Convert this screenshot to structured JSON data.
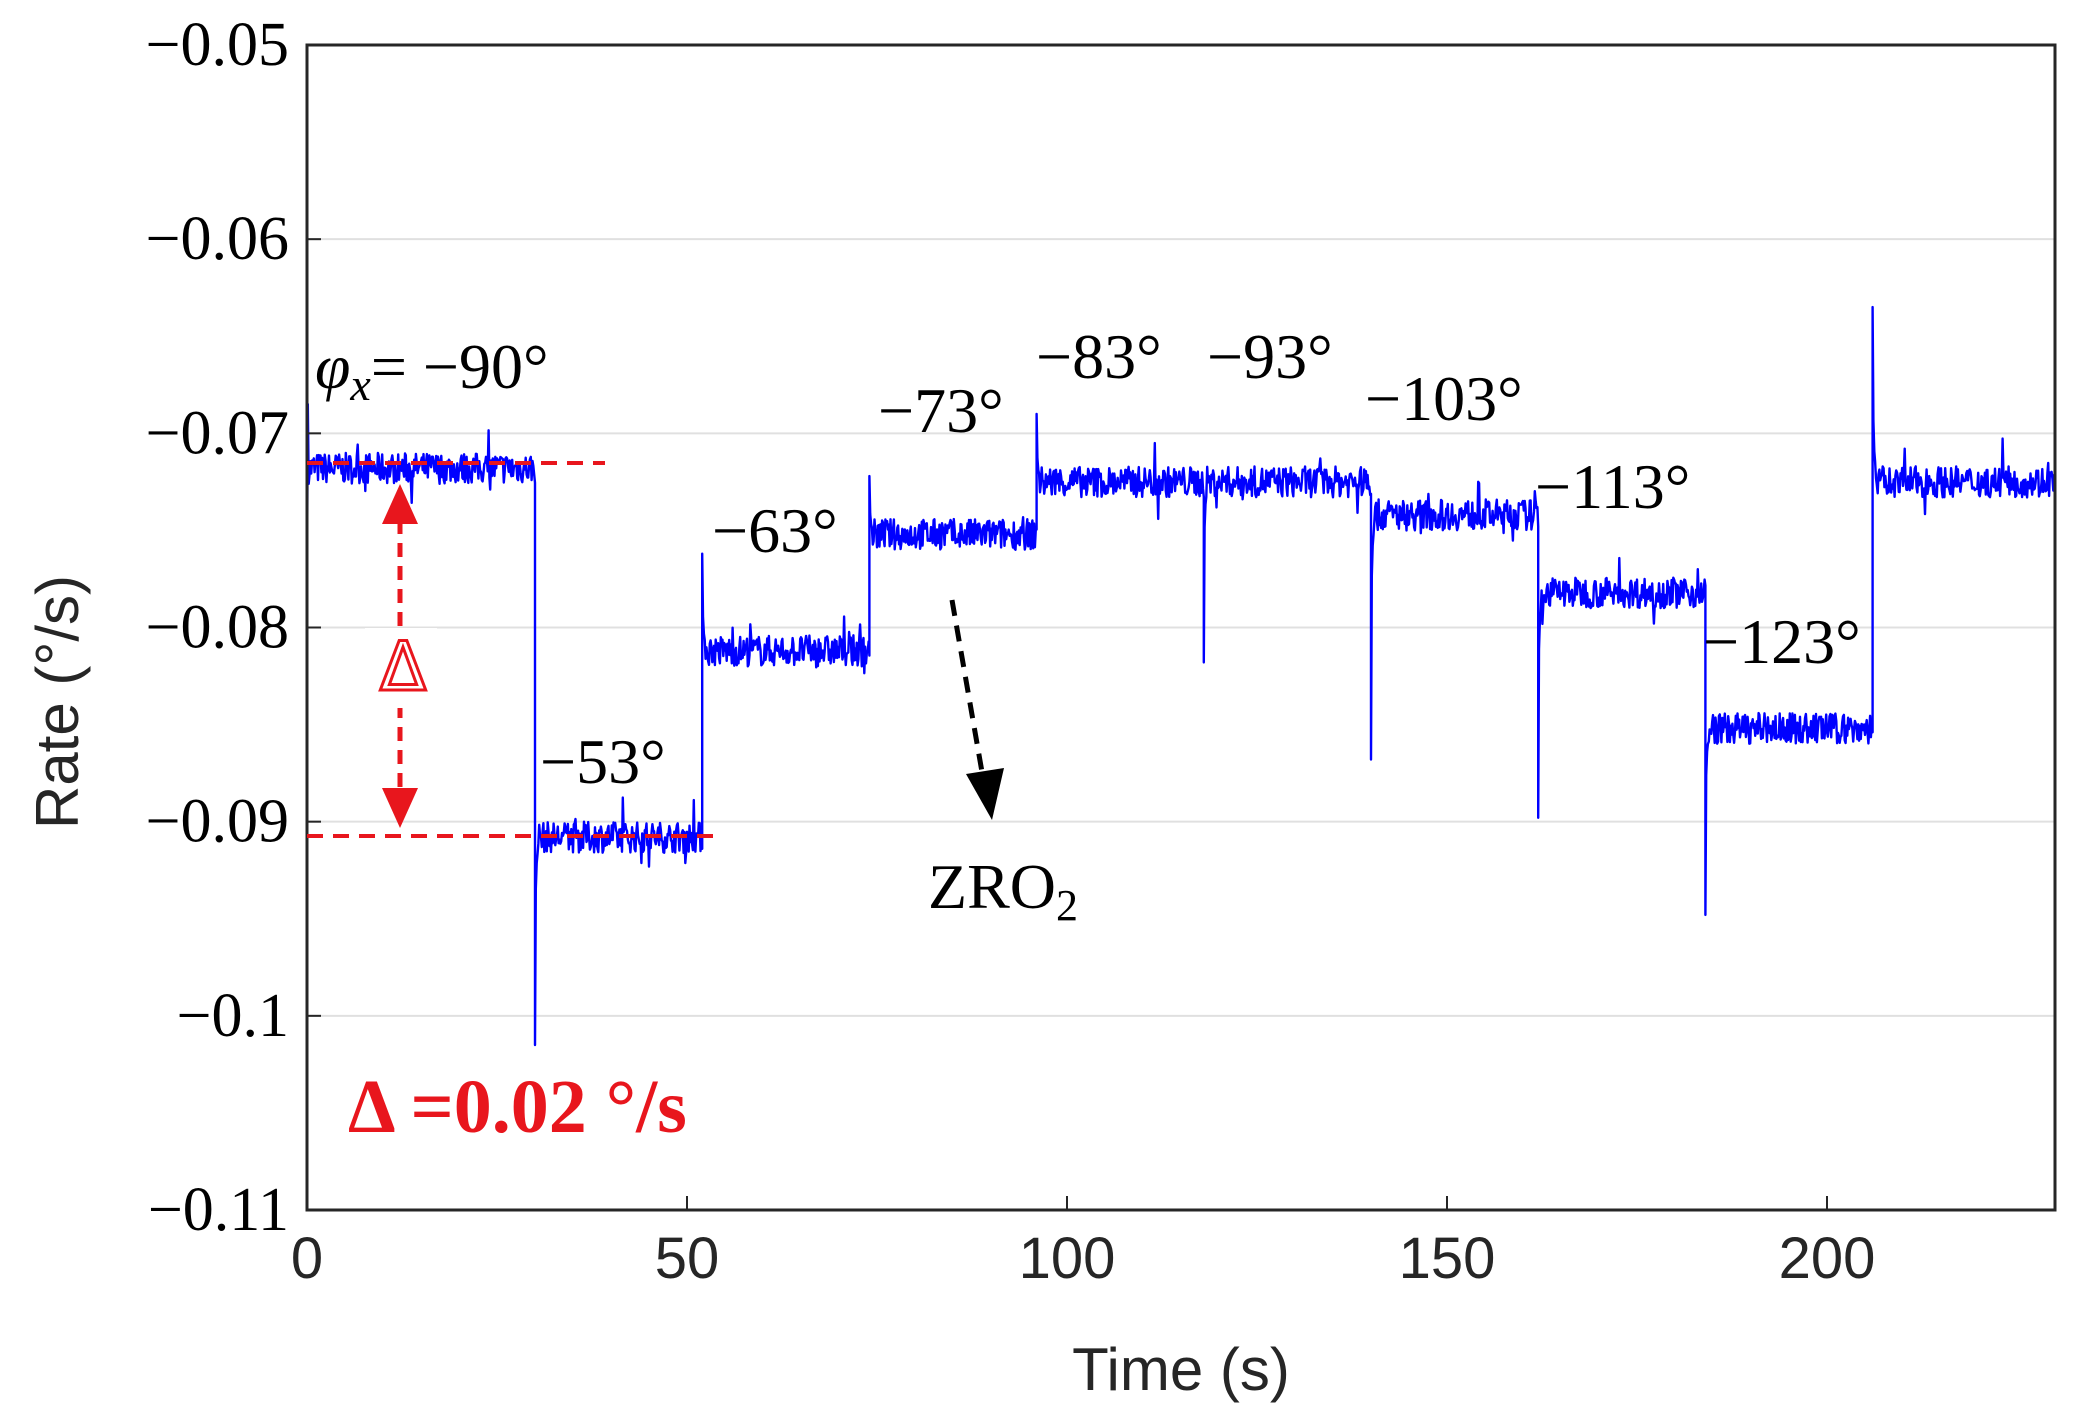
{
  "chart_data": {
    "type": "line",
    "title": "",
    "xlabel": "Time (s)",
    "ylabel": "Rate (°/s)",
    "xlim": [
      0,
      230
    ],
    "ylim": [
      -0.11,
      -0.05
    ],
    "x_ticks": [
      {
        "value": 0,
        "label": "0"
      },
      {
        "value": 50,
        "label": "50"
      },
      {
        "value": 100,
        "label": "100"
      },
      {
        "value": 150,
        "label": "150"
      },
      {
        "value": 200,
        "label": "200"
      }
    ],
    "y_ticks": [
      {
        "value": -0.05,
        "label": "−0.05"
      },
      {
        "value": -0.06,
        "label": "−0.06"
      },
      {
        "value": -0.07,
        "label": "−0.07"
      },
      {
        "value": -0.08,
        "label": "−0.08"
      },
      {
        "value": -0.09,
        "label": "−0.09"
      },
      {
        "value": -0.1,
        "label": "−0.1"
      },
      {
        "value": -0.11,
        "label": "−0.11"
      }
    ],
    "grid": "horizontal",
    "series": [
      {
        "name": "Rate",
        "color": "#0000ff",
        "segments": [
          {
            "t_start": 0,
            "t_end": 30,
            "mean": -0.0718,
            "spike": -0.0685,
            "label": "−90°"
          },
          {
            "t_start": 30,
            "t_end": 52,
            "mean": -0.0908,
            "spike": -0.1015,
            "label": "−53°"
          },
          {
            "t_start": 52,
            "t_end": 74,
            "mean": -0.0812,
            "spike": -0.0762,
            "label": "−63°"
          },
          {
            "t_start": 74,
            "t_end": 96,
            "mean": -0.0752,
            "spike": -0.0722,
            "label": "−73°"
          },
          {
            "t_start": 96,
            "t_end": 118,
            "mean": -0.0725,
            "spike": -0.069,
            "label": "−83°"
          },
          {
            "t_start": 118,
            "t_end": 140,
            "mean": -0.0725,
            "spike": -0.0818,
            "label": "−93°"
          },
          {
            "t_start": 140,
            "t_end": 162,
            "mean": -0.0742,
            "spike": -0.0868,
            "label": "−103°"
          },
          {
            "t_start": 162,
            "t_end": 184,
            "mean": -0.0782,
            "spike": -0.0898,
            "label": "−113°"
          },
          {
            "t_start": 184,
            "t_end": 206,
            "mean": -0.0852,
            "spike": -0.0948,
            "label": "−123°"
          },
          {
            "t_start": 206,
            "t_end": 230,
            "mean": -0.0725,
            "spike": -0.0635,
            "label": ""
          }
        ]
      }
    ],
    "annotations": {
      "phi_symbol": "φ",
      "phi_subscript": "x",
      "phi_equals": "= −90°",
      "angle_labels": [
        "−53°",
        "−63°",
        "−73°",
        "−83°",
        "−93°",
        "−103°",
        "−113°",
        "−123°"
      ],
      "zro_label": "ZRO",
      "zro_subscript": "2",
      "delta_symbol": "Δ",
      "delta_text": "Δ =0.02 °/s",
      "reference_lines": [
        -0.0718,
        -0.0908
      ]
    },
    "colors": {
      "series": "#0000ff",
      "annotation_red": "#e8161d",
      "grid": "#e0e0e0"
    }
  }
}
